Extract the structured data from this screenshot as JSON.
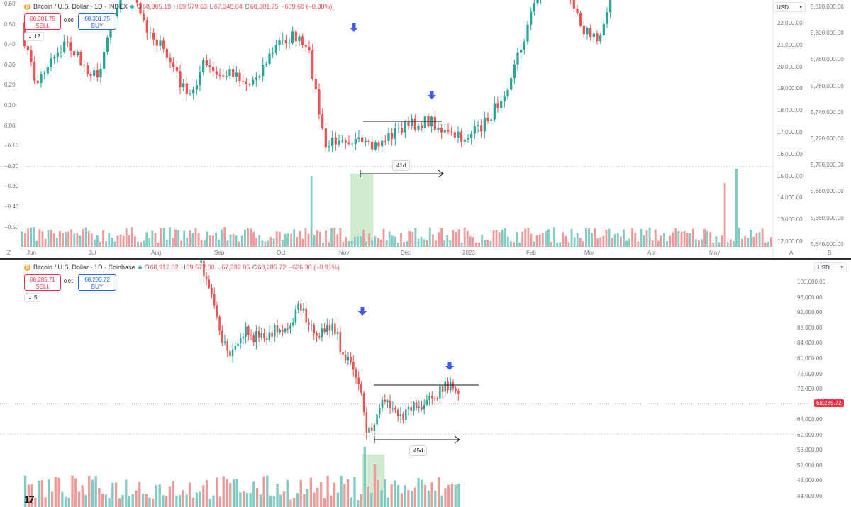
{
  "top": {
    "symbol_title": "Bitcoin / U.S. Dollar · 1D · INDEX",
    "ohlc": {
      "o_label": "O",
      "o": "68,905.18",
      "h_label": "H",
      "h": "69,579.63",
      "l_label": "L",
      "l": "67,348.04",
      "c_label": "C",
      "c": "68,301.75",
      "change": "−609.68 (−0.88%)"
    },
    "sell_price": "68,301.75",
    "sell_label": "SELL",
    "spread": "0.00",
    "buy_price": "68,301.75",
    "buy_label": "BUY",
    "indicator_count": "12",
    "currency": "USD",
    "duration_label": "41d",
    "left_scale": [
      "0.60",
      "0.50",
      "0.40",
      "0.30",
      "0.20",
      "0.10",
      "0.00",
      "−0.10",
      "−0.20",
      "−0.30",
      "−0.40",
      "−0.50"
    ],
    "price_scale_1": [
      "22,000.00",
      "21,000.00",
      "20,000.00",
      "19,000.00",
      "18,000.00",
      "17,000.00",
      "16,000.00",
      "15,000.00",
      "14,000.00",
      "13,000.00",
      "12,000.00"
    ],
    "price_scale_2": [
      "5,820,000.00",
      "5,800,000.00",
      "5,780,000.00",
      "5,760,000.00",
      "5,740,000.00",
      "5,720,000.00",
      "5,700,000.00",
      "5,680,000.00",
      "5,660,000.00",
      "5,640,000.00"
    ],
    "time_axis": [
      "Jun",
      "Jul",
      "Aug",
      "Sep",
      "Oct",
      "Nov",
      "Dec",
      "2023",
      "Feb",
      "Mar",
      "Apr",
      "May"
    ],
    "corner_left": "Z",
    "corner_a": "A",
    "corner_b": "B"
  },
  "bottom": {
    "symbol_title": "Bitcoin / U.S. Dollar · 1D · Coinbase",
    "ohlc": {
      "o_label": "O",
      "o": "68,912.02",
      "h_label": "H",
      "h": "69,577.00",
      "l_label": "L",
      "l": "67,332.05",
      "c_label": "C",
      "c": "68,285.72",
      "change": "−626.30 (−0.91%)"
    },
    "sell_price": "68,285.71",
    "sell_label": "SELL",
    "spread": "0.01",
    "buy_price": "68,285.72",
    "buy_label": "BUY",
    "indicator_count": "5",
    "currency": "USD",
    "current_price_tag": "68,285.72",
    "duration_label": "45d",
    "price_scale": [
      "100,000.00",
      "96,000.00",
      "92,000.00",
      "88,000.00",
      "84,000.00",
      "80,000.00",
      "76,000.00",
      "72,000.00",
      "64,000.00",
      "60,000.00",
      "56,000.00",
      "52,000.00",
      "48,000.00",
      "44,000.00"
    ],
    "logo": "17"
  },
  "colors": {
    "up": "#26a69a",
    "down": "#ef5350",
    "arrow": "#3d5afe",
    "volume_highlight": "#4caf50"
  },
  "icons": [
    "bitcoin-icon",
    "market-open-dot-icon",
    "chevron-down-icon",
    "down-arrow-marker-icon",
    "tradingview-logo-icon"
  ]
}
